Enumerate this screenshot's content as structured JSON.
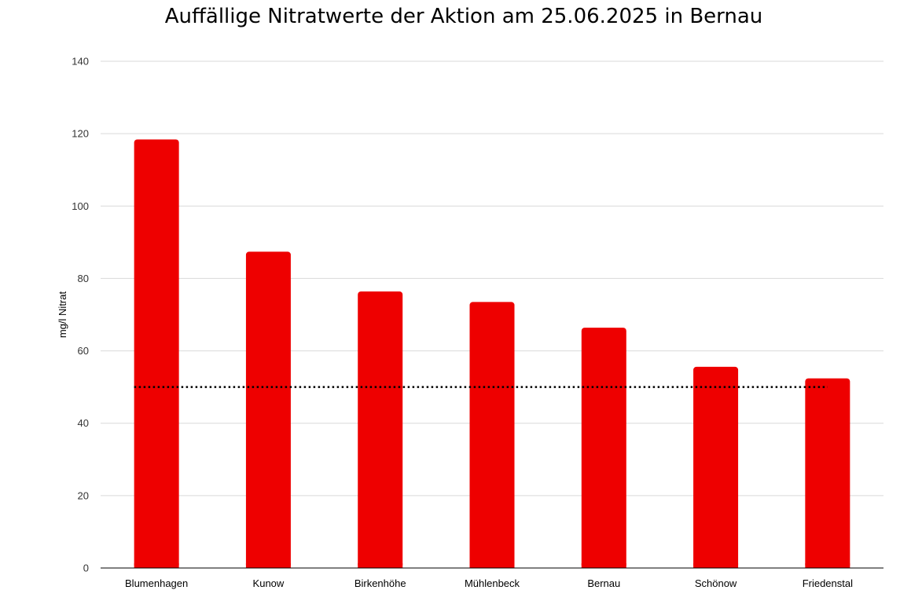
{
  "chart_data": {
    "type": "bar",
    "title": "Auffällige Nitratwerte der Aktion am 25.06.2025 in Bernau",
    "xlabel": "",
    "ylabel": "mg/l Nitrat",
    "categories": [
      "Blumenhagen",
      "Kunow",
      "Birkenhöhe",
      "Mühlenbeck",
      "Bernau",
      "Schönow",
      "Friedenstal"
    ],
    "series": [
      {
        "values": [
          118.4,
          87.4,
          76.4,
          73.5,
          66.4,
          55.6,
          52.4
        ]
      }
    ],
    "reference_line": {
      "value": 50,
      "style": "dotted"
    },
    "ylim": [
      0,
      140
    ],
    "yticks": [
      0,
      20,
      40,
      60,
      80,
      100,
      120,
      140
    ],
    "grid": true,
    "legend": "none",
    "colors": {
      "bar": "#ee0000",
      "grid": "#d9d9d9",
      "reference_line": "#000000",
      "axis": "#000000"
    }
  }
}
